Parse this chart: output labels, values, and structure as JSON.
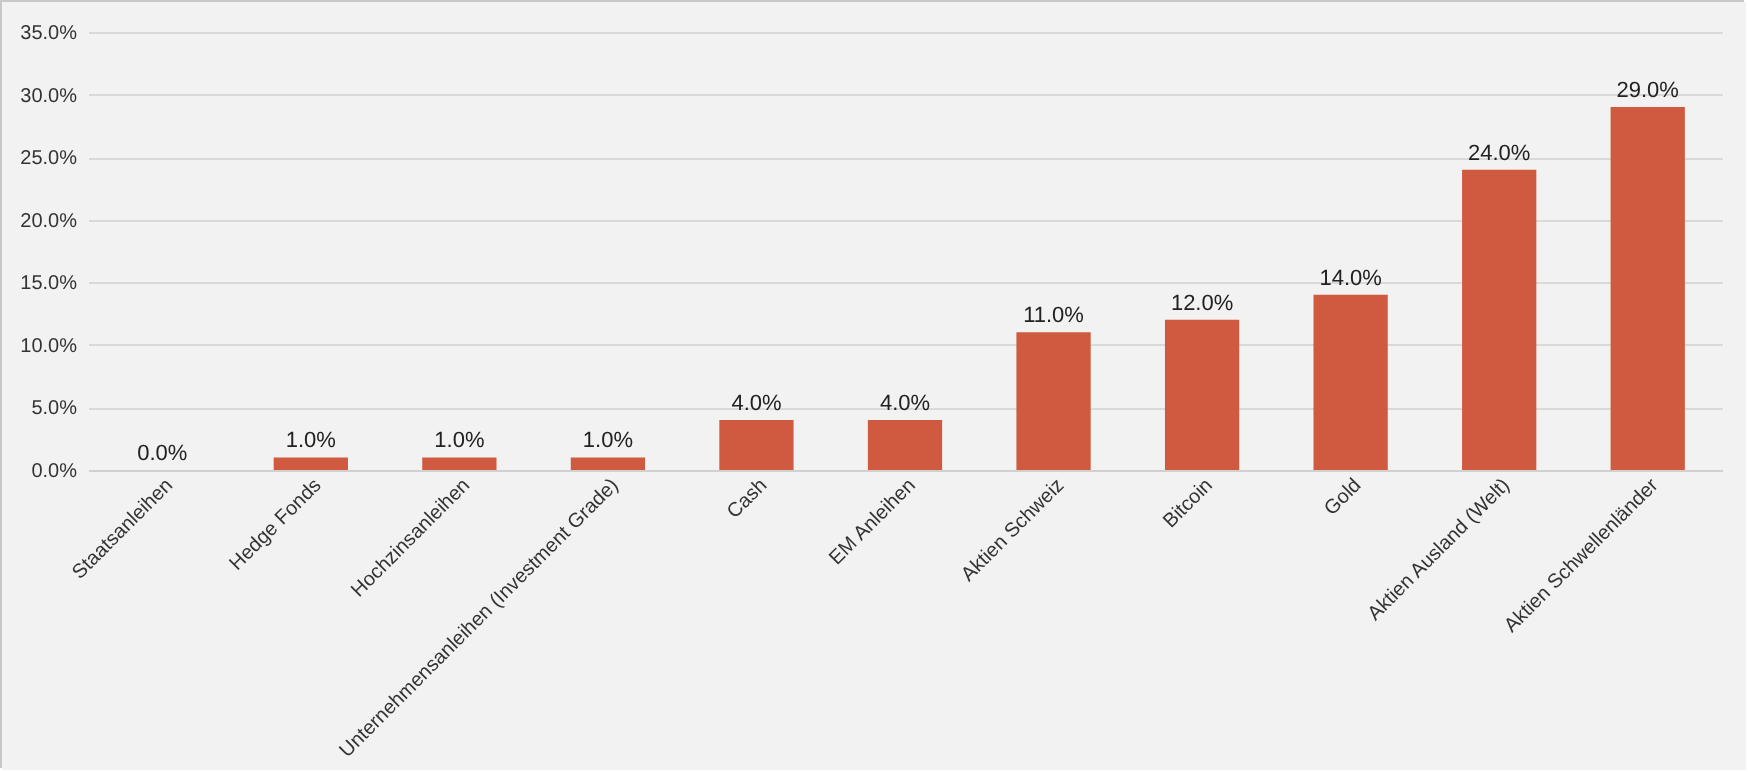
{
  "chart_data": {
    "type": "bar",
    "categories": [
      "Staatsanleihen",
      "Hedge Fonds",
      "Hochzinsanleihen",
      "Unternehmensanleihen (Investment Grade)",
      "Cash",
      "EM Anleihen",
      "Aktien Schweiz",
      "Bitcoin",
      "Gold",
      "Aktien Ausland (Welt)",
      "Aktien Schwellenländer"
    ],
    "values": [
      0,
      1,
      1,
      1,
      4,
      4,
      11,
      12,
      14,
      24,
      29
    ],
    "color": "#d05a3f",
    "value_labels": [
      "0.0%",
      "1.0%",
      "1.0%",
      "1.0%",
      "4.0%",
      "4.0%",
      "11.0%",
      "12.0%",
      "14.0%",
      "24.0%",
      "29.0%"
    ],
    "ylim": [
      0,
      35
    ],
    "yticks": [
      {
        "value": 0,
        "label": "0.0%"
      },
      {
        "value": 5,
        "label": "5.0%"
      },
      {
        "value": 10,
        "label": "10.0%"
      },
      {
        "value": 15,
        "label": "15.0%"
      },
      {
        "value": 20,
        "label": "20.0%"
      },
      {
        "value": 25,
        "label": "25.0%"
      },
      {
        "value": 30,
        "label": "30.0%"
      },
      {
        "value": 35,
        "label": "35.0%"
      }
    ],
    "grid": "y"
  }
}
